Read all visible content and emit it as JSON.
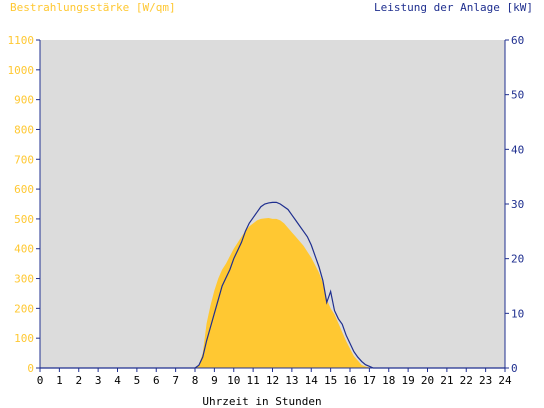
{
  "chart_data": {
    "type": "area",
    "title_left": "Bestrahlungsstärke [W/qm]",
    "title_right": "Leistung der Anlage [kW]",
    "xlabel": "Uhrzeit in Stunden",
    "x_ticks": [
      "0",
      "1",
      "2",
      "3",
      "4",
      "5",
      "6",
      "7",
      "8",
      "9",
      "10",
      "11",
      "12",
      "13",
      "14",
      "15",
      "16",
      "17",
      "18",
      "19",
      "20",
      "21",
      "22",
      "23",
      "24"
    ],
    "y_ticks": [
      "0",
      "100",
      "200",
      "300",
      "400",
      "500",
      "600",
      "700",
      "800",
      "900",
      "1000",
      "1100"
    ],
    "y2_ticks": [
      "0",
      "10",
      "20",
      "30",
      "40",
      "50",
      "60"
    ],
    "xlim": [
      0,
      24
    ],
    "ylim": [
      0,
      1100
    ],
    "y2lim": [
      0,
      60
    ],
    "grid": false,
    "colors": {
      "plot_background": "#dcdcdc",
      "irradiance_fill": "#ffc832",
      "power_line": "#1f2f8f",
      "left_axis_text": "#ffc832",
      "right_axis_text": "#1f2f8f"
    },
    "series": [
      {
        "axis": "left",
        "style": "area",
        "x": [
          0,
          8.0,
          8.2,
          8.4,
          8.6,
          8.8,
          9.0,
          9.2,
          9.4,
          9.6,
          9.8,
          10.0,
          10.2,
          10.4,
          10.6,
          10.8,
          11.0,
          11.2,
          11.4,
          11.6,
          11.8,
          12.0,
          12.2,
          12.4,
          12.6,
          12.8,
          13.0,
          13.2,
          13.4,
          13.6,
          13.8,
          14.0,
          14.2,
          14.4,
          14.6,
          14.8,
          15.0,
          15.2,
          15.4,
          15.6,
          15.8,
          16.0,
          16.2,
          16.4,
          16.6,
          16.8,
          17.0,
          17.2,
          17.4,
          17.6,
          17.8,
          24
        ],
        "y": [
          0,
          0,
          10,
          50,
          150,
          210,
          260,
          300,
          330,
          350,
          375,
          400,
          420,
          440,
          460,
          475,
          485,
          495,
          500,
          502,
          503,
          500,
          500,
          495,
          485,
          470,
          455,
          440,
          425,
          410,
          390,
          370,
          345,
          320,
          285,
          230,
          200,
          180,
          150,
          120,
          90,
          65,
          40,
          25,
          10,
          5,
          2,
          1,
          0,
          0,
          0,
          0
        ]
      },
      {
        "axis": "right",
        "style": "line",
        "x": [
          0,
          8.0,
          8.2,
          8.4,
          8.6,
          8.8,
          9.0,
          9.2,
          9.4,
          9.6,
          9.8,
          10.0,
          10.2,
          10.4,
          10.6,
          10.8,
          11.0,
          11.2,
          11.4,
          11.6,
          11.8,
          12.0,
          12.2,
          12.4,
          12.6,
          12.8,
          13.0,
          13.2,
          13.4,
          13.6,
          13.8,
          14.0,
          14.2,
          14.4,
          14.6,
          14.8,
          15.0,
          15.2,
          15.4,
          15.6,
          15.8,
          16.0,
          16.2,
          16.4,
          16.6,
          16.8,
          17.0,
          17.2,
          17.4,
          17.6,
          17.8,
          24
        ],
        "y": [
          0,
          0,
          0.5,
          2,
          5,
          7.5,
          10,
          12.5,
          15,
          16.5,
          18,
          20,
          21.5,
          23,
          25,
          26.5,
          27.5,
          28.5,
          29.5,
          30,
          30.2,
          30.3,
          30.3,
          30.0,
          29.5,
          29.0,
          28.0,
          27.0,
          26.0,
          25.0,
          24.0,
          22.5,
          20.5,
          18.5,
          16.0,
          12.0,
          14.0,
          10.5,
          9.0,
          8.0,
          6.0,
          4.5,
          3.0,
          2.0,
          1.2,
          0.6,
          0.3,
          0,
          0,
          0,
          0,
          0
        ]
      }
    ]
  }
}
